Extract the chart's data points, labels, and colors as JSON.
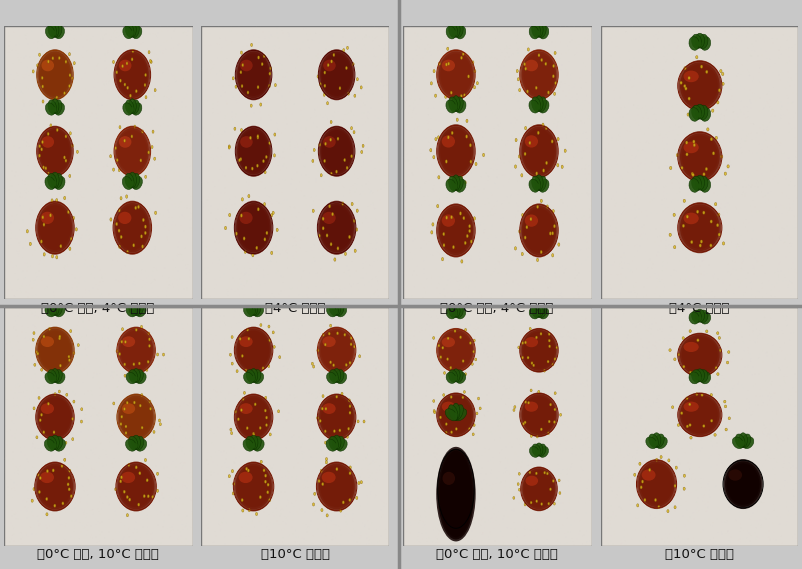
{
  "figsize": [
    8.03,
    5.69
  ],
  "dpi": 100,
  "background_color": "#c8c8c8",
  "panel_bg": "#d8cfc0",
  "text_color": "#111111",
  "font_size": 9.5,
  "labels": {
    "tl1": "ゐ0°C 예냉, 4°C 저장ゑ",
    "tl2": "を4°C 저장ゑ",
    "tr1": "を0°C 예냉, 4°C 저장ゑ",
    "tr2": "を4°C 저장ゑ",
    "bl1": "を0°C 예냉, 10°C 저장ゑ",
    "bl2": "を10°C 저장ゑ",
    "br1": "を0°C 예냉, 10°C 저장ゑ",
    "br2": "を10°C 저장ゑ"
  },
  "divider_color": "#888888",
  "border_color": "#777777"
}
